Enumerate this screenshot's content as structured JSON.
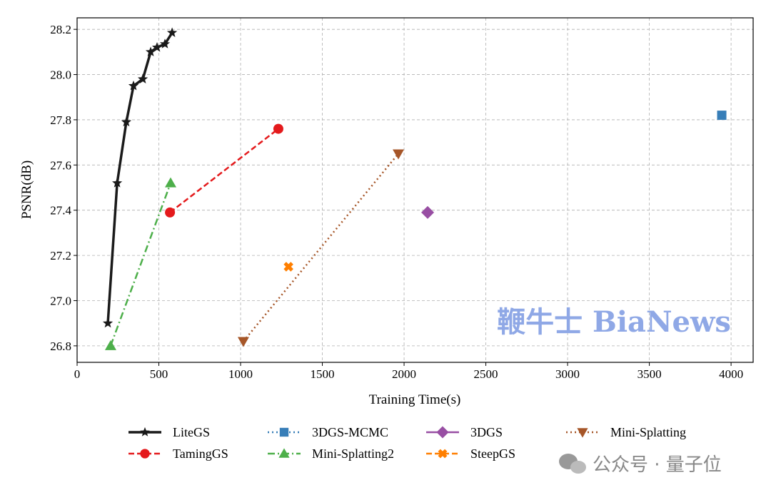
{
  "chart_data": {
    "type": "line",
    "title": "",
    "xlabel": "Training Time(s)",
    "ylabel": "PSNR(dB)",
    "xlim": [
      0,
      4135
    ],
    "ylim": [
      26.727,
      28.251
    ],
    "xticks": [
      0,
      500,
      1000,
      1500,
      2000,
      2500,
      3000,
      3500,
      4000
    ],
    "yticks": [
      26.8,
      27.0,
      27.2,
      27.4,
      27.6,
      27.8,
      28.0,
      28.2
    ],
    "grid": true,
    "legend_position": "bottom",
    "series": [
      {
        "name": "LiteGS",
        "color": "#1a1a1a",
        "marker": "star",
        "line": "solid",
        "x": [
          188,
          245,
          301,
          345,
          402,
          450,
          489,
          537,
          581
        ],
        "y": [
          26.9,
          27.52,
          27.79,
          27.95,
          27.98,
          28.1,
          28.12,
          28.135,
          28.185
        ]
      },
      {
        "name": "TamingGS",
        "color": "#e41a1c",
        "marker": "circle",
        "line": "dashed",
        "x": [
          568,
          1231
        ],
        "y": [
          27.39,
          27.76
        ]
      },
      {
        "name": "3DGS-MCMC",
        "color": "#377eb8",
        "marker": "square",
        "line": "dotted",
        "x": [
          3943
        ],
        "y": [
          27.82
        ]
      },
      {
        "name": "Mini-Splatting2",
        "color": "#4daf4a",
        "marker": "triangle-up",
        "line": "dashdot",
        "x": [
          205,
          572
        ],
        "y": [
          26.8,
          27.52
        ]
      },
      {
        "name": "3DGS",
        "color": "#984ea3",
        "marker": "diamond",
        "line": "solid",
        "x": [
          2144
        ],
        "y": [
          27.39
        ]
      },
      {
        "name": "SteepGS",
        "color": "#ff7f00",
        "marker": "x-filled",
        "line": "dashed",
        "x": [
          1293
        ],
        "y": [
          27.15
        ]
      },
      {
        "name": "Mini-Splatting",
        "color": "#a65628",
        "marker": "triangle-down",
        "line": "dotted",
        "x": [
          1017,
          1965
        ],
        "y": [
          26.82,
          27.65
        ]
      }
    ]
  },
  "watermarks": {
    "center": "鞭牛士 BiaNews",
    "corner": "公众号 · 量子位"
  }
}
